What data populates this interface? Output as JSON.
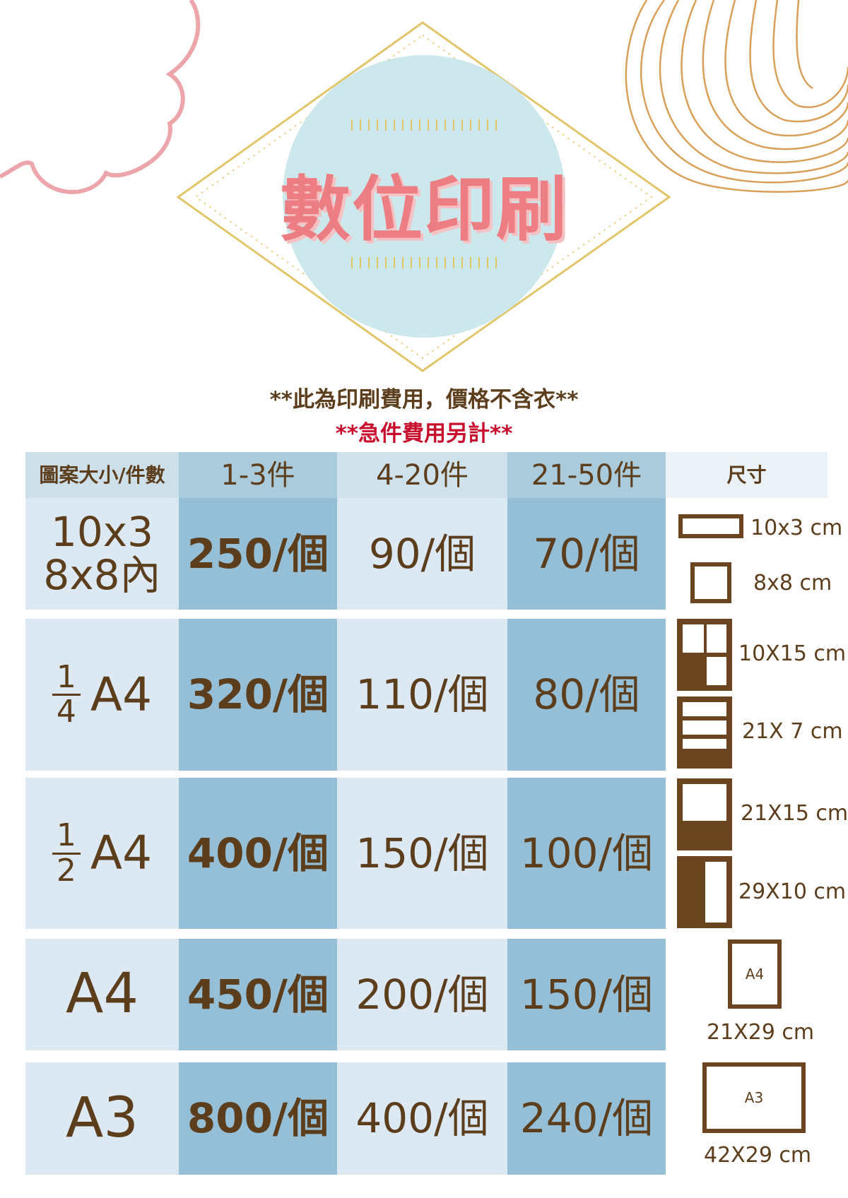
{
  "title": "數位印刷",
  "notes": [
    "**此為印刷費用，價格不含衣**",
    "**急件費用另計**"
  ],
  "colors": {
    "brown": "#5c3d1c",
    "red": "#c8102e",
    "title": "#ec7d83",
    "circle": "#cde8ec",
    "gold": "#e1c56a",
    "cloud": "#eba5ab",
    "onion": "#d9a05a"
  },
  "header": [
    "圖案大小/件數",
    "1-3件",
    "4-20件",
    "21-50件",
    "尺寸"
  ],
  "rows": [
    {
      "size_line1": "10x3",
      "size_line2": "8x8內",
      "prices": [
        "250/個",
        "90/個",
        "70/個"
      ]
    },
    {
      "frac_num": "1",
      "frac_den": "4",
      "size": "A4",
      "prices": [
        "320/個",
        "110/個",
        "80/個"
      ]
    },
    {
      "frac_num": "1",
      "frac_den": "2",
      "size": "A4",
      "prices": [
        "400/個",
        "150/個",
        "100/個"
      ]
    },
    {
      "size": "A4",
      "prices": [
        "450/個",
        "200/個",
        "150/個"
      ]
    },
    {
      "size": "A3",
      "prices": [
        "800/個",
        "400/個",
        "240/個"
      ]
    }
  ],
  "dimensions": [
    "10x3 cm",
    "8x8 cm",
    "10X15 cm",
    "21X 7 cm",
    "21X15 cm",
    "29X10 cm",
    "21X29 cm",
    "42X29 cm"
  ],
  "icon_labels": [
    "A4",
    "A3"
  ]
}
